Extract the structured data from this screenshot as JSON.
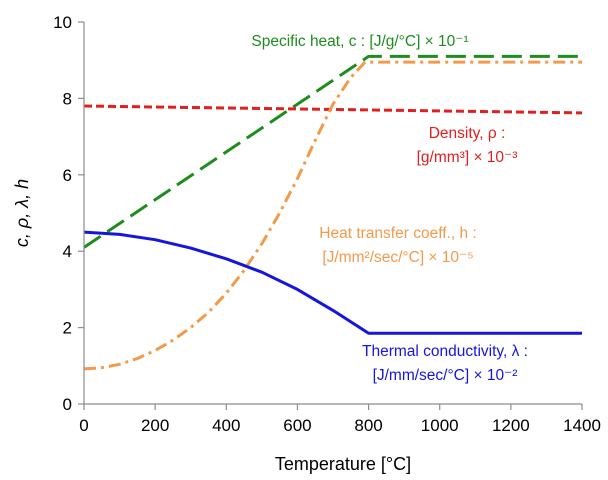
{
  "chart_data": {
    "type": "line",
    "xlabel": "Temperature [°C]",
    "ylabel": "c,  ρ,  λ,  h",
    "xlim": [
      0,
      1400
    ],
    "ylim": [
      0,
      10
    ],
    "x_ticks": [
      0,
      200,
      400,
      600,
      800,
      1000,
      1200,
      1400
    ],
    "y_ticks": [
      0,
      2,
      4,
      6,
      8,
      10
    ],
    "grid": false,
    "legend": "none",
    "series": [
      {
        "key": "specific_heat",
        "color": "#1e8c1e",
        "dash": "long-dash",
        "label_lines": [
          "Specific heat, c : [J/g/°C] × 10⁻¹"
        ],
        "points": [
          [
            0,
            4.1
          ],
          [
            800,
            9.1
          ],
          [
            1400,
            9.1
          ]
        ]
      },
      {
        "key": "density",
        "color": "#e02020",
        "dash": "short-dash",
        "label_lines": [
          "Density, ρ :",
          "[g/mm³] × 10⁻³"
        ],
        "points": [
          [
            0,
            7.8
          ],
          [
            1400,
            7.62
          ]
        ]
      },
      {
        "key": "heat_transfer",
        "color": "#f39a4a",
        "dash": "dash-dot",
        "label_lines": [
          "Heat transfer coeff., h :",
          "[J/mm²/sec/°C] × 10⁻⁵"
        ],
        "points": [
          [
            0,
            0.92
          ],
          [
            50,
            0.95
          ],
          [
            100,
            1.04
          ],
          [
            150,
            1.19
          ],
          [
            200,
            1.4
          ],
          [
            250,
            1.67
          ],
          [
            300,
            2.0
          ],
          [
            350,
            2.4
          ],
          [
            400,
            2.9
          ],
          [
            450,
            3.5
          ],
          [
            500,
            4.2
          ],
          [
            550,
            5.0
          ],
          [
            600,
            5.9
          ],
          [
            650,
            6.9
          ],
          [
            700,
            7.85
          ],
          [
            750,
            8.55
          ],
          [
            790,
            8.95
          ],
          [
            800,
            8.95
          ],
          [
            1400,
            8.95
          ]
        ]
      },
      {
        "key": "thermal_conductivity",
        "color": "#1515e0",
        "dash": "solid",
        "label_lines": [
          "Thermal conductivity, λ :",
          "[J/mm/sec/°C] × 10⁻²"
        ],
        "points": [
          [
            0,
            4.5
          ],
          [
            100,
            4.44
          ],
          [
            200,
            4.3
          ],
          [
            300,
            4.08
          ],
          [
            400,
            3.8
          ],
          [
            500,
            3.45
          ],
          [
            600,
            3.0
          ],
          [
            700,
            2.45
          ],
          [
            800,
            1.85
          ],
          [
            1400,
            1.85
          ]
        ]
      }
    ]
  }
}
